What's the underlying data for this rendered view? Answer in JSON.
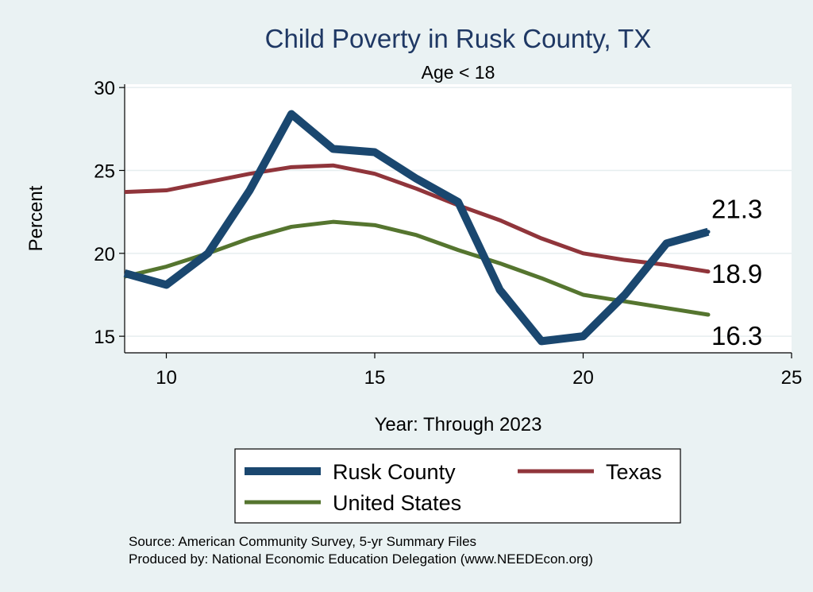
{
  "chart_data": {
    "type": "line",
    "title": "Child Poverty in Rusk County, TX",
    "subtitle": "Age < 18",
    "xlabel": "Year: Through 2023",
    "ylabel": "Percent",
    "xlim": [
      9,
      25
    ],
    "ylim": [
      14,
      30.2
    ],
    "x_ticks": [
      10,
      15,
      20,
      25
    ],
    "y_ticks": [
      15,
      20,
      25,
      30
    ],
    "grid": true,
    "legend_position": "bottom",
    "series": [
      {
        "name": "Rusk County",
        "color": "#1a476f",
        "x": [
          9,
          10,
          11,
          12,
          13,
          14,
          15,
          16,
          17,
          18,
          19,
          20,
          21,
          22,
          23
        ],
        "values": [
          18.8,
          18.1,
          20.0,
          23.8,
          28.4,
          26.3,
          26.1,
          24.5,
          23.1,
          17.8,
          14.7,
          15.0,
          17.5,
          20.6,
          21.3
        ],
        "end_label": "21.3"
      },
      {
        "name": "Texas",
        "color": "#90353b",
        "x": [
          9,
          10,
          11,
          12,
          13,
          14,
          15,
          16,
          17,
          18,
          19,
          20,
          21,
          22,
          23
        ],
        "values": [
          23.7,
          23.8,
          24.3,
          24.8,
          25.2,
          25.3,
          24.8,
          23.9,
          22.9,
          22.0,
          20.9,
          20.0,
          19.6,
          19.3,
          18.9
        ],
        "end_label": "18.9"
      },
      {
        "name": "United States",
        "color": "#55752f",
        "x": [
          9,
          10,
          11,
          12,
          13,
          14,
          15,
          16,
          17,
          18,
          19,
          20,
          21,
          22,
          23
        ],
        "values": [
          18.6,
          19.2,
          20.0,
          20.9,
          21.6,
          21.9,
          21.7,
          21.1,
          20.2,
          19.4,
          18.5,
          17.5,
          17.1,
          16.7,
          16.3
        ],
        "end_label": "16.3"
      }
    ]
  },
  "source": {
    "line1": "Source: American Community Survey, 5-yr Summary Files",
    "line2": "Produced by: National Economic Education Delegation (www.NEEDEcon.org)"
  }
}
